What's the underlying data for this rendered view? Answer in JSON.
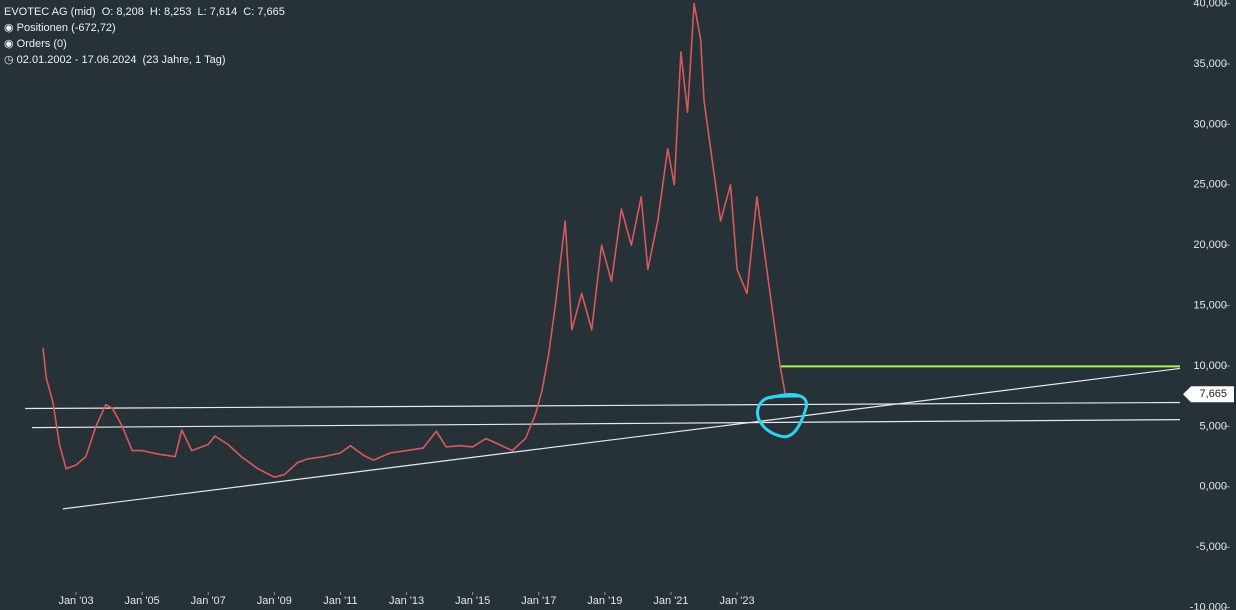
{
  "header": {
    "instrument": "EVOTEC AG (mid)",
    "open": "O: 8,208",
    "high": "H: 8,253",
    "low": "L: 7,614",
    "close": "C: 7,665",
    "positions": "Positionen (-672,72)",
    "orders": "Orders (0)",
    "date_range": "02.01.2002 - 17.06.2024",
    "duration": "(23 Jahre, 1 Tag)"
  },
  "chart_data": {
    "type": "line",
    "xlim": [
      2000.7,
      2036.4
    ],
    "ylim": [
      -10.2,
      40.3
    ],
    "xticks": [
      {
        "value": 2003,
        "label": "Jan '03"
      },
      {
        "value": 2005,
        "label": "Jan '05"
      },
      {
        "value": 2007,
        "label": "Jan '07"
      },
      {
        "value": 2009,
        "label": "Jan '09"
      },
      {
        "value": 2011,
        "label": "Jan '11"
      },
      {
        "value": 2013,
        "label": "Jan '13"
      },
      {
        "value": 2015,
        "label": "Jan '15"
      },
      {
        "value": 2017,
        "label": "Jan '17"
      },
      {
        "value": 2019,
        "label": "Jan '19"
      },
      {
        "value": 2021,
        "label": "Jan '21"
      },
      {
        "value": 2023,
        "label": "Jan '23"
      }
    ],
    "yticks": [
      {
        "value": -10,
        "label": "-10,000"
      },
      {
        "value": -5,
        "label": "-5,000"
      },
      {
        "value": 0,
        "label": "0,000"
      },
      {
        "value": 5,
        "label": "5,000"
      },
      {
        "value": 10,
        "label": "10,000"
      },
      {
        "value": 15,
        "label": "15,000"
      },
      {
        "value": 20,
        "label": "20,000"
      },
      {
        "value": 25,
        "label": "25,000"
      },
      {
        "value": 30,
        "label": "30,000"
      },
      {
        "value": 35,
        "label": "35,000"
      },
      {
        "value": 40,
        "label": "40,000"
      }
    ],
    "series": [
      {
        "color": "#d9585a",
        "x": [
          2002.0,
          2002.1,
          2002.3,
          2002.5,
          2002.7,
          2003.0,
          2003.3,
          2003.6,
          2003.9,
          2004.1,
          2004.4,
          2004.7,
          2005.0,
          2005.5,
          2006.0,
          2006.2,
          2006.5,
          2007.0,
          2007.2,
          2007.6,
          2008.0,
          2008.5,
          2009.0,
          2009.3,
          2009.7,
          2010.0,
          2010.5,
          2011.0,
          2011.3,
          2011.7,
          2012.0,
          2012.5,
          2013.0,
          2013.5,
          2013.9,
          2014.2,
          2014.6,
          2015.0,
          2015.4,
          2015.8,
          2016.2,
          2016.6,
          2016.9,
          2017.1,
          2017.3,
          2017.5,
          2017.8,
          2018.0,
          2018.3,
          2018.6,
          2018.9,
          2019.2,
          2019.5,
          2019.8,
          2020.1,
          2020.3,
          2020.6,
          2020.9,
          2021.1,
          2021.3,
          2021.5,
          2021.7,
          2021.9,
          2022.0,
          2022.2,
          2022.5,
          2022.8,
          2023.0,
          2023.3,
          2023.6,
          2023.9,
          2024.1,
          2024.3,
          2024.46
        ],
        "values": [
          11.5,
          9,
          7,
          3.5,
          1.5,
          1.8,
          2.5,
          5,
          6.8,
          6.5,
          5,
          3,
          3,
          2.7,
          2.5,
          4.7,
          3,
          3.5,
          4.2,
          3.5,
          2.5,
          1.5,
          0.8,
          1,
          2,
          2.3,
          2.5,
          2.8,
          3.4,
          2.6,
          2.2,
          2.8,
          3,
          3.2,
          4.6,
          3.3,
          3.4,
          3.3,
          4,
          3.5,
          3,
          4,
          6,
          8,
          11,
          15,
          22,
          13,
          16,
          13,
          20,
          17,
          23,
          20,
          24,
          18,
          22,
          28,
          25,
          36,
          31,
          40,
          37,
          32,
          28,
          22,
          25,
          18,
          16,
          24,
          18,
          14,
          10,
          7.665
        ]
      }
    ],
    "last_price": {
      "value": 7.665,
      "label": "7,665"
    },
    "lines": [
      {
        "color": "#e8e8e8",
        "x": [
          2001.46,
          2036.4
        ],
        "y": [
          6.48,
          6.98
        ]
      },
      {
        "color": "#e8e8e8",
        "x": [
          2001.67,
          2036.4
        ],
        "y": [
          4.9,
          5.56
        ]
      },
      {
        "color": "#e8e8e8",
        "x": [
          2002.6,
          2036.4
        ],
        "y": [
          -1.83,
          9.8
        ]
      },
      {
        "color": "#a8f060",
        "x": [
          2024.3,
          2036.4
        ],
        "y": [
          9.97,
          9.97
        ]
      }
    ]
  }
}
